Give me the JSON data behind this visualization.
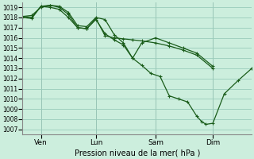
{
  "title": "Pression niveau de la mer( hPa )",
  "background_color": "#cceedd",
  "grid_color": "#99ccbb",
  "line_color": "#1a5c1a",
  "ylim": [
    1006.5,
    1019.5
  ],
  "yticks": [
    1007,
    1008,
    1009,
    1010,
    1011,
    1012,
    1013,
    1014,
    1015,
    1016,
    1017,
    1018,
    1019
  ],
  "xlim": [
    0,
    100
  ],
  "xtick_positions": [
    8,
    32,
    58,
    83
  ],
  "xtick_labels": [
    "Ven",
    "Lun",
    "Sam",
    "Dim"
  ],
  "series1": [
    [
      0,
      1018.1
    ],
    [
      4,
      1018.2
    ],
    [
      8,
      1019.0
    ],
    [
      12,
      1019.2
    ],
    [
      16,
      1019.1
    ],
    [
      20,
      1018.5
    ],
    [
      24,
      1017.2
    ],
    [
      28,
      1017.1
    ],
    [
      32,
      1018.0
    ],
    [
      36,
      1017.8
    ],
    [
      40,
      1016.3
    ],
    [
      44,
      1015.5
    ],
    [
      48,
      1014.0
    ],
    [
      52,
      1015.5
    ],
    [
      58,
      1016.0
    ],
    [
      64,
      1015.5
    ],
    [
      70,
      1015.0
    ],
    [
      76,
      1014.5
    ],
    [
      83,
      1013.2
    ]
  ],
  "series2": [
    [
      0,
      1018.1
    ],
    [
      4,
      1018.0
    ],
    [
      8,
      1019.1
    ],
    [
      12,
      1019.2
    ],
    [
      16,
      1019.0
    ],
    [
      20,
      1018.3
    ],
    [
      24,
      1017.0
    ],
    [
      28,
      1016.9
    ],
    [
      32,
      1017.8
    ],
    [
      36,
      1016.4
    ],
    [
      40,
      1015.8
    ],
    [
      44,
      1015.3
    ],
    [
      48,
      1014.0
    ],
    [
      52,
      1013.3
    ],
    [
      56,
      1012.5
    ],
    [
      60,
      1012.2
    ],
    [
      64,
      1010.3
    ],
    [
      68,
      1010.0
    ],
    [
      72,
      1009.7
    ],
    [
      76,
      1008.3
    ],
    [
      78,
      1007.8
    ],
    [
      80,
      1007.5
    ],
    [
      83,
      1007.6
    ],
    [
      88,
      1010.5
    ],
    [
      94,
      1011.8
    ],
    [
      100,
      1013.0
    ]
  ],
  "series3": [
    [
      0,
      1018.0
    ],
    [
      4,
      1017.9
    ],
    [
      8,
      1019.1
    ],
    [
      12,
      1019.0
    ],
    [
      16,
      1018.8
    ],
    [
      20,
      1018.0
    ],
    [
      24,
      1017.0
    ],
    [
      28,
      1016.9
    ],
    [
      32,
      1017.9
    ],
    [
      36,
      1016.2
    ],
    [
      40,
      1016.0
    ],
    [
      44,
      1015.9
    ],
    [
      48,
      1015.8
    ],
    [
      52,
      1015.7
    ],
    [
      58,
      1015.5
    ],
    [
      64,
      1015.2
    ],
    [
      70,
      1014.8
    ],
    [
      76,
      1014.3
    ],
    [
      83,
      1013.0
    ]
  ]
}
